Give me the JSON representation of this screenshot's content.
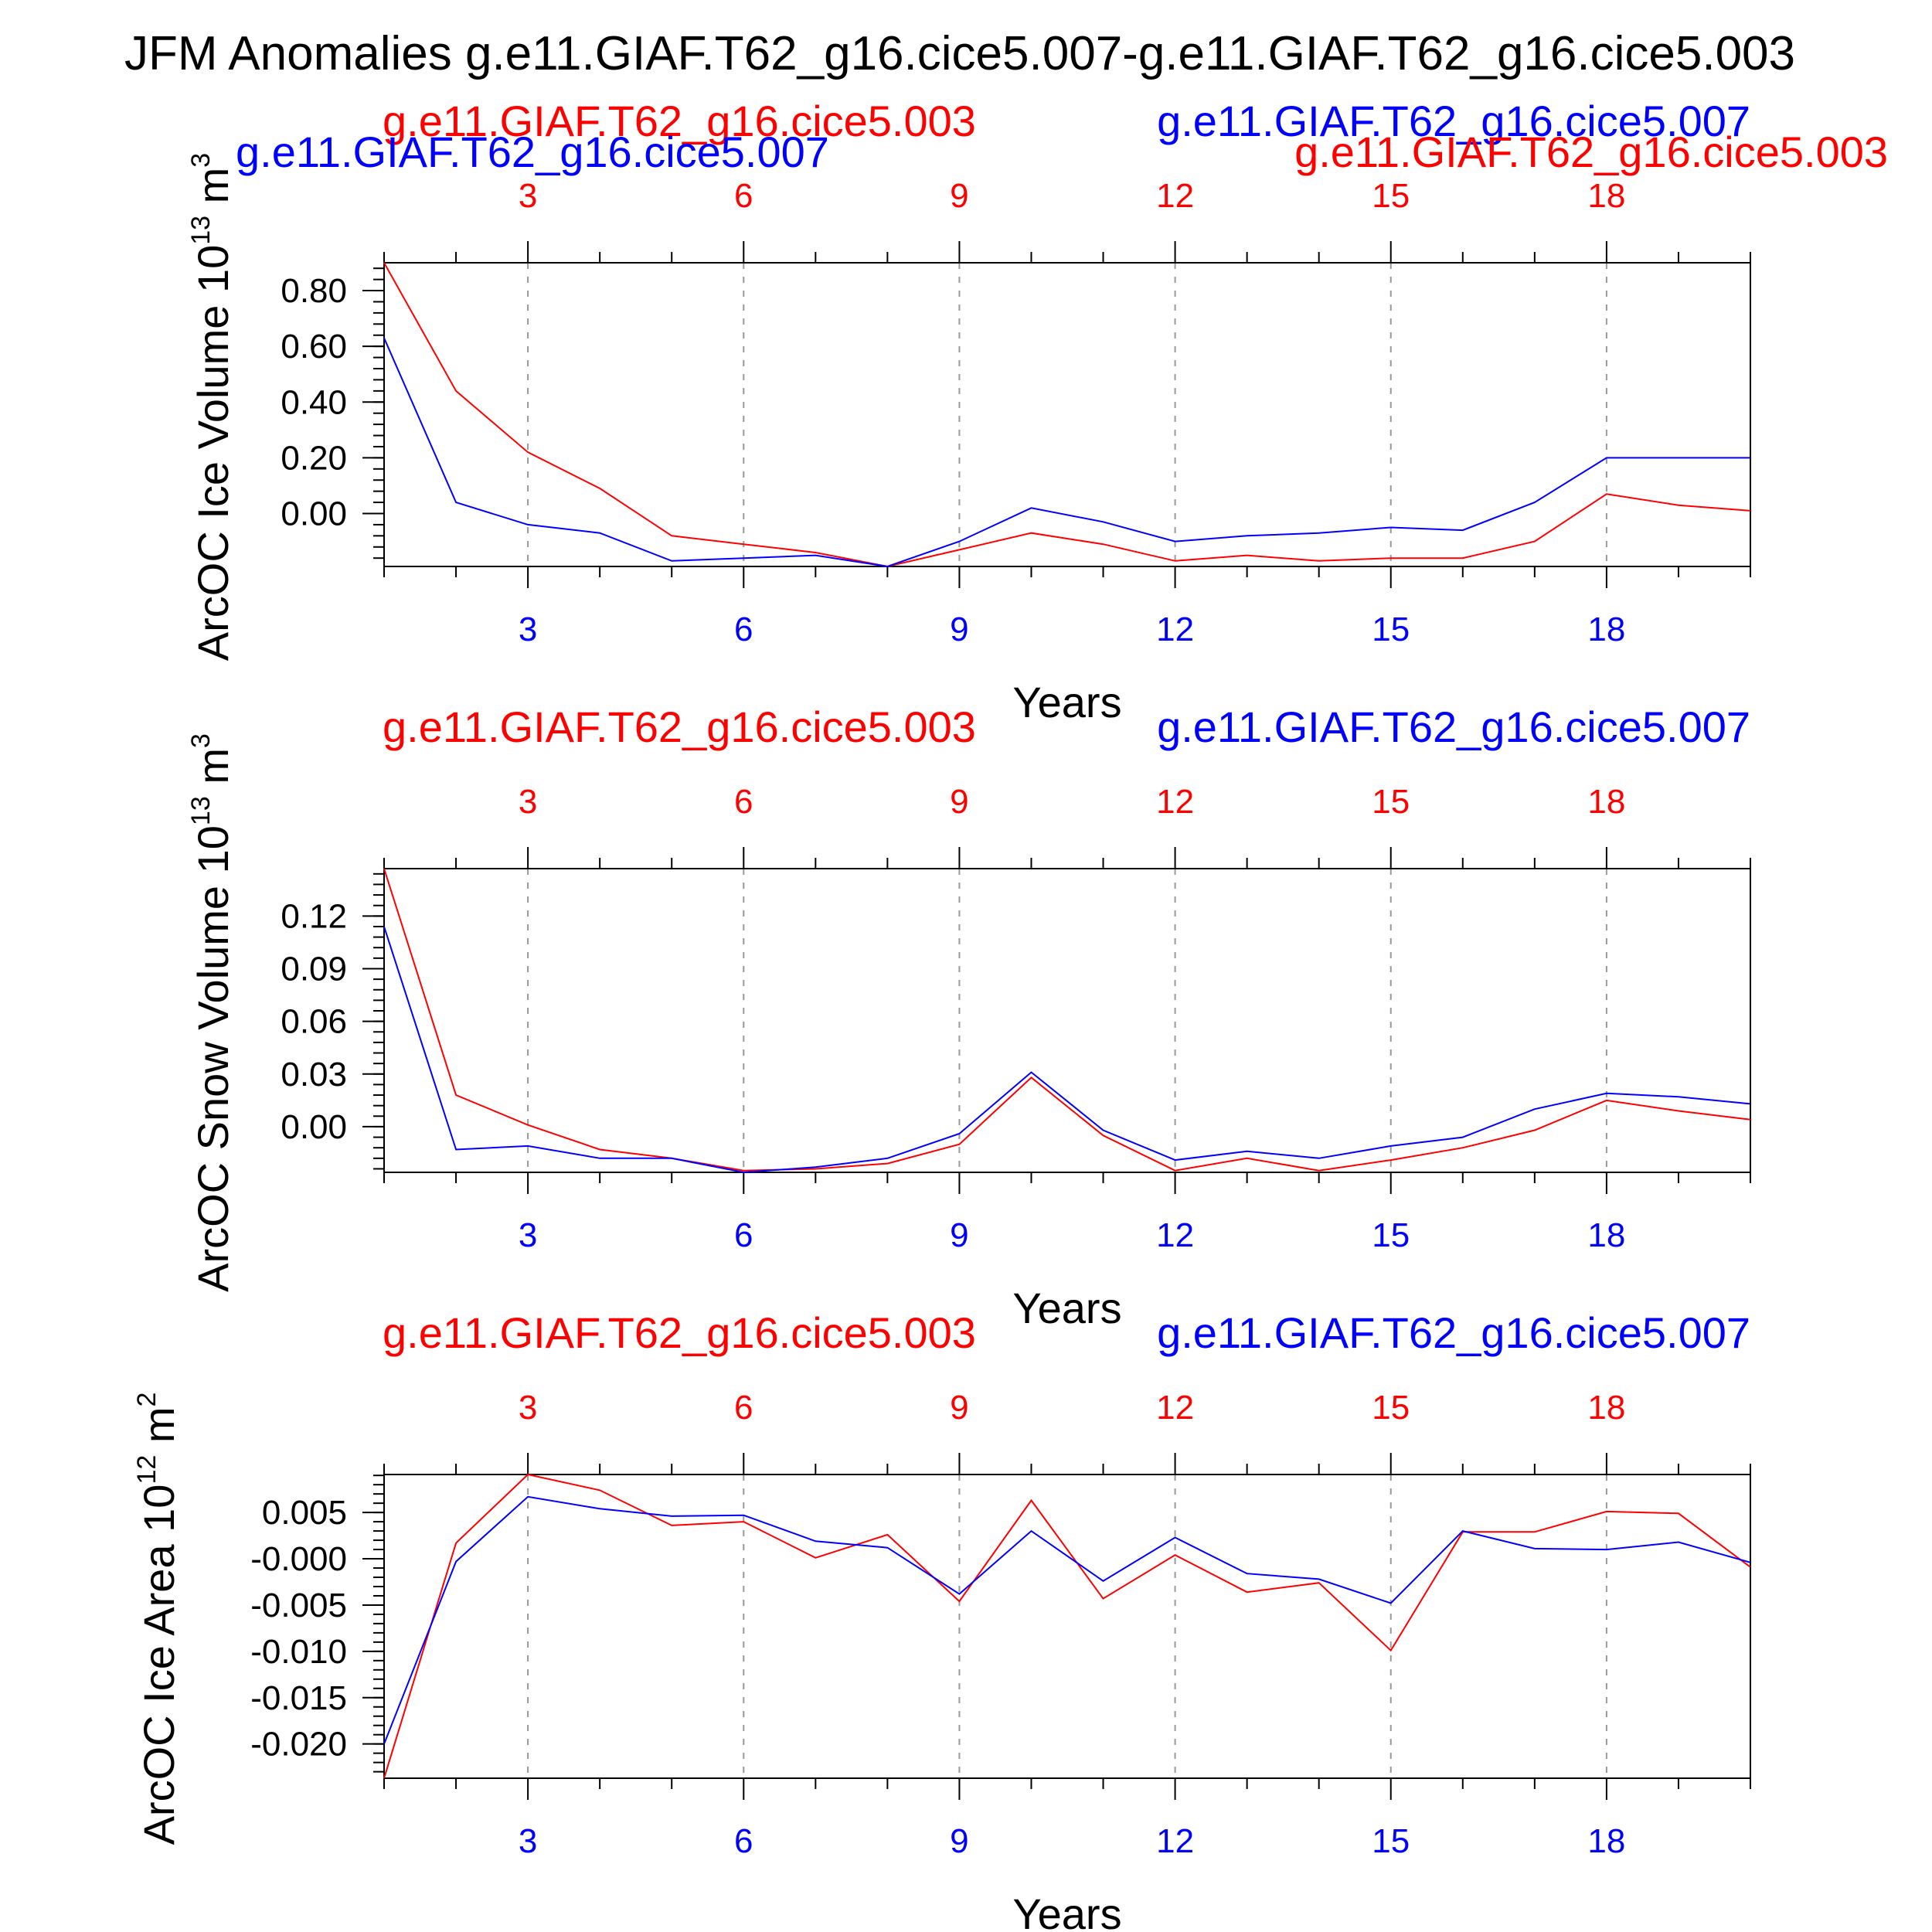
{
  "title": "JFM Anomalies g.e11.GIAF.T62_g16.cice5.007-g.e11.GIAF.T62_g16.cice5.003",
  "colors": {
    "run_003": "#ff0000",
    "run_007": "#0000ff",
    "axis": "#000000",
    "grid": "#999999"
  },
  "chart_data": [
    {
      "type": "line",
      "ylabel": "ArcOC Ice Volume 10^13 m^3",
      "ylabel_parts": [
        "ArcOC Ice Volume 10",
        "13",
        " m",
        "3"
      ],
      "xlabel": "Years",
      "xlim": [
        1,
        20
      ],
      "xticks": [
        "3",
        "6",
        "9",
        "12",
        "15",
        "18"
      ],
      "ylim": [
        -0.19,
        0.9
      ],
      "yticks": [
        "0.80",
        "0.60",
        "0.40",
        "0.20",
        "0.00"
      ],
      "legend": [
        "g.e11.GIAF.T62_g16.cice5.003",
        "g.e11.GIAF.T62_g16.cice5.007"
      ],
      "extra_labels": [
        {
          "text": "g.e11.GIAF.T62_g16.cice5.007",
          "series": 1
        },
        {
          "text": "g.e11.GIAF.T62_g16.cice5.003",
          "series": 0
        }
      ],
      "x": [
        1,
        2,
        3,
        4,
        5,
        6,
        7,
        8,
        9,
        10,
        11,
        12,
        13,
        14,
        15,
        16,
        17,
        18,
        19,
        20
      ],
      "series": [
        {
          "name": "g.e11.GIAF.T62_g16.cice5.003",
          "color": "#ff0000",
          "values": [
            0.9,
            0.44,
            0.22,
            0.09,
            -0.08,
            -0.11,
            -0.14,
            -0.19,
            -0.13,
            -0.07,
            -0.11,
            -0.17,
            -0.15,
            -0.17,
            -0.16,
            -0.16,
            -0.1,
            0.07,
            0.03,
            0.01
          ]
        },
        {
          "name": "g.e11.GIAF.T62_g16.cice5.007",
          "color": "#0000ff",
          "values": [
            0.63,
            0.04,
            -0.04,
            -0.07,
            -0.17,
            -0.16,
            -0.15,
            -0.19,
            -0.1,
            0.02,
            -0.03,
            -0.1,
            -0.08,
            -0.07,
            -0.05,
            -0.06,
            0.04,
            0.2,
            0.2,
            0.2
          ]
        }
      ]
    },
    {
      "type": "line",
      "ylabel": "ArcOC Snow Volume 10^13 m^3",
      "ylabel_parts": [
        "ArcOC Snow Volume 10",
        "13",
        " m",
        "3"
      ],
      "xlabel": "Years",
      "xlim": [
        1,
        20
      ],
      "xticks": [
        "3",
        "6",
        "9",
        "12",
        "15",
        "18"
      ],
      "ylim": [
        -0.026,
        0.147
      ],
      "yticks": [
        "0.12",
        "0.09",
        "0.06",
        "0.03",
        "0.00"
      ],
      "legend": [
        "g.e11.GIAF.T62_g16.cice5.003",
        "g.e11.GIAF.T62_g16.cice5.007"
      ],
      "extra_labels": [],
      "x": [
        1,
        2,
        3,
        4,
        5,
        6,
        7,
        8,
        9,
        10,
        11,
        12,
        13,
        14,
        15,
        16,
        17,
        18,
        19,
        20
      ],
      "series": [
        {
          "name": "g.e11.GIAF.T62_g16.cice5.003",
          "color": "#ff0000",
          "values": [
            0.147,
            0.018,
            0.001,
            -0.013,
            -0.018,
            -0.025,
            -0.024,
            -0.021,
            -0.01,
            0.028,
            -0.005,
            -0.025,
            -0.018,
            -0.025,
            -0.019,
            -0.012,
            -0.002,
            0.015,
            0.009,
            0.004
          ]
        },
        {
          "name": "g.e11.GIAF.T62_g16.cice5.007",
          "color": "#0000ff",
          "values": [
            0.114,
            -0.013,
            -0.011,
            -0.018,
            -0.018,
            -0.026,
            -0.023,
            -0.018,
            -0.004,
            0.031,
            -0.002,
            -0.019,
            -0.014,
            -0.018,
            -0.011,
            -0.006,
            0.01,
            0.019,
            0.017,
            0.013
          ]
        }
      ]
    },
    {
      "type": "line",
      "ylabel": "ArcOC Ice Area 10^12 m^2",
      "ylabel_parts": [
        "ArcOC Ice Area 10",
        "12",
        " m",
        "2"
      ],
      "xlabel": "Years",
      "xlim": [
        1,
        20
      ],
      "xticks": [
        "3",
        "6",
        "9",
        "12",
        "15",
        "18"
      ],
      "ylim": [
        -0.0237,
        0.0091
      ],
      "yticks": [
        "0.005",
        "-0.000",
        "-0.005",
        "-0.010",
        "-0.015",
        "-0.020"
      ],
      "legend": [
        "g.e11.GIAF.T62_g16.cice5.003",
        "g.e11.GIAF.T62_g16.cice5.007"
      ],
      "extra_labels": [],
      "x": [
        1,
        2,
        3,
        4,
        5,
        6,
        7,
        8,
        9,
        10,
        11,
        12,
        13,
        14,
        15,
        16,
        17,
        18,
        19,
        20
      ],
      "series": [
        {
          "name": "g.e11.GIAF.T62_g16.cice5.003",
          "color": "#ff0000",
          "values": [
            -0.0237,
            0.0017,
            0.0091,
            0.0074,
            0.0036,
            0.004,
            0.0001,
            0.0026,
            -0.0046,
            0.0063,
            -0.0043,
            0.0004,
            -0.0036,
            -0.0026,
            -0.0099,
            0.0029,
            0.0029,
            0.0051,
            0.0049,
            -0.0009
          ]
        },
        {
          "name": "g.e11.GIAF.T62_g16.cice5.007",
          "color": "#0000ff",
          "values": [
            -0.02,
            -0.0003,
            0.0067,
            0.0054,
            0.0046,
            0.0047,
            0.0019,
            0.0012,
            -0.0038,
            0.003,
            -0.0024,
            0.0023,
            -0.0016,
            -0.0022,
            -0.0048,
            0.003,
            0.0011,
            0.001,
            0.0018,
            -0.0004
          ]
        }
      ]
    }
  ]
}
